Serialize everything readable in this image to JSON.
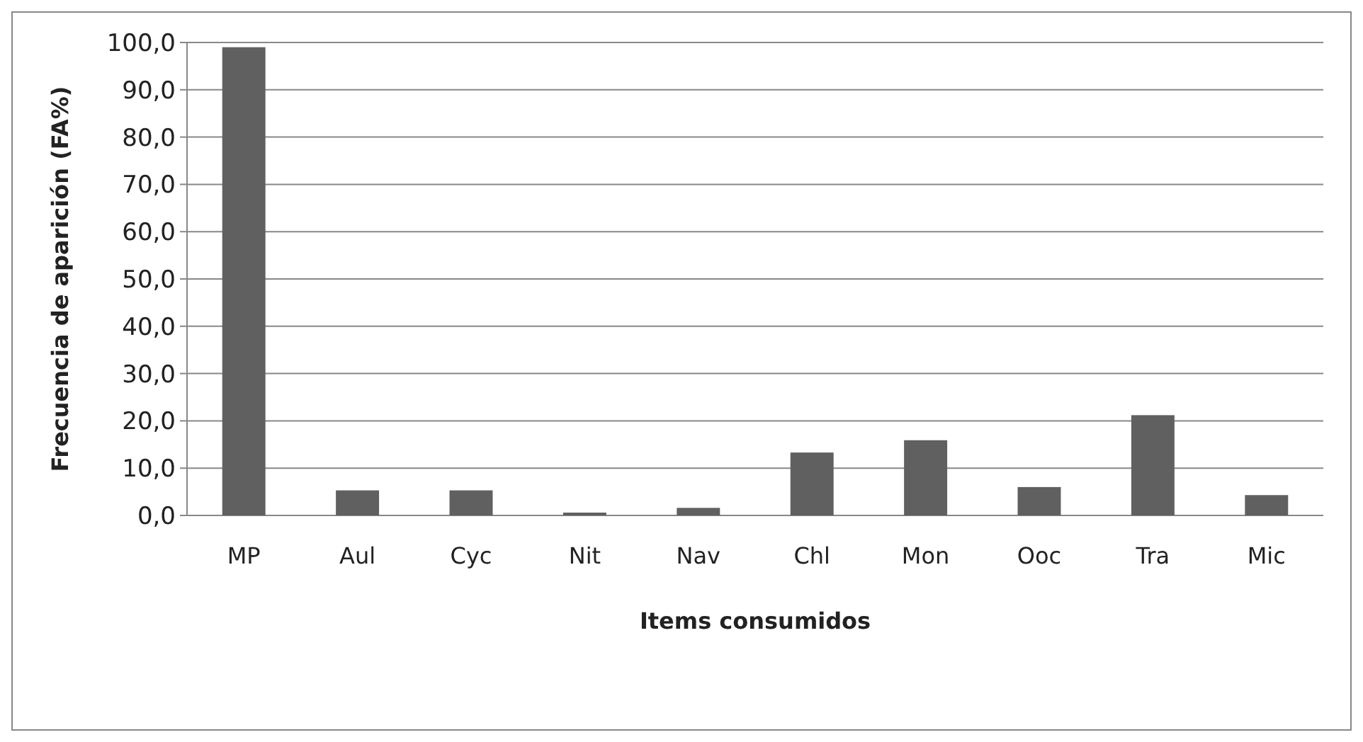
{
  "chart_data": {
    "type": "bar",
    "xlabel": "Items consumidos",
    "ylabel": "Frecuencia de aparición (FA%)",
    "categories": [
      "MP",
      "Aul",
      "Cyc",
      "Nit",
      "Nav",
      "Chl",
      "Mon",
      "Ooc",
      "Tra",
      "Mic"
    ],
    "values": [
      99.0,
      5.3,
      5.3,
      0.6,
      1.6,
      13.3,
      15.9,
      6.0,
      21.2,
      4.3
    ],
    "color": "#606060",
    "ylim": [
      0,
      100
    ],
    "yticks": [
      {
        "value": 0,
        "label": "0,0"
      },
      {
        "value": 10,
        "label": "10,0"
      },
      {
        "value": 20,
        "label": "20,0"
      },
      {
        "value": 30,
        "label": "30,0"
      },
      {
        "value": 40,
        "label": "40,0"
      },
      {
        "value": 50,
        "label": "50,0"
      },
      {
        "value": 60,
        "label": "60,0"
      },
      {
        "value": 70,
        "label": "70,0"
      },
      {
        "value": 80,
        "label": "80,0"
      },
      {
        "value": 90,
        "label": "90,0"
      },
      {
        "value": 100,
        "label": "100,0"
      }
    ],
    "grid": "y"
  }
}
